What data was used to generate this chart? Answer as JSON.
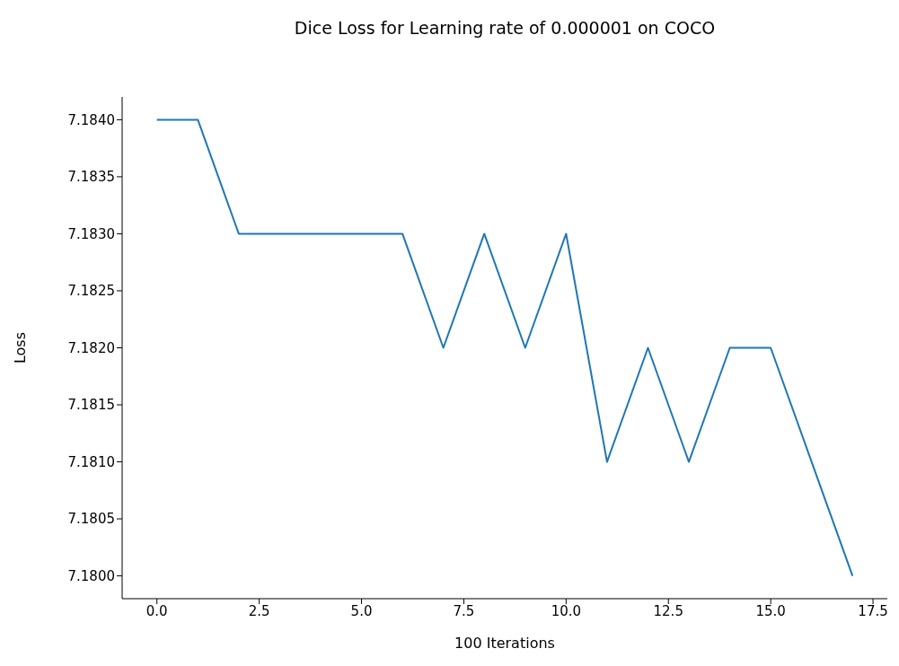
{
  "chart_data": {
    "type": "line",
    "title": "Dice Loss for Learning rate of 0.000001 on COCO",
    "xlabel": "100 Iterations",
    "ylabel": "Loss",
    "x": [
      0,
      1,
      2,
      3,
      4,
      5,
      6,
      7,
      8,
      9,
      10,
      11,
      12,
      13,
      14,
      15,
      16,
      17
    ],
    "series": [
      {
        "color": "#1f77b4",
        "values": [
          7.184,
          7.184,
          7.183,
          7.183,
          7.183,
          7.183,
          7.183,
          7.182,
          7.183,
          7.182,
          7.183,
          7.181,
          7.182,
          7.181,
          7.182,
          7.182,
          7.181,
          7.18
        ]
      }
    ],
    "xlim": [
      -0.85,
      17.85
    ],
    "xticks": [
      {
        "value": 0,
        "label": "0.0"
      },
      {
        "value": 2.5,
        "label": "2.5"
      },
      {
        "value": 5,
        "label": "5.0"
      },
      {
        "value": 7.5,
        "label": "7.5"
      },
      {
        "value": 10,
        "label": "10.0"
      },
      {
        "value": 12.5,
        "label": "12.5"
      },
      {
        "value": 15,
        "label": "15.0"
      },
      {
        "value": 17.5,
        "label": "17.5"
      }
    ],
    "ylim": [
      7.1798,
      7.1842
    ],
    "yticks": [
      {
        "value": 7.18,
        "label": "7.1800"
      },
      {
        "value": 7.1805,
        "label": "7.1805"
      },
      {
        "value": 7.181,
        "label": "7.1810"
      },
      {
        "value": 7.1815,
        "label": "7.1815"
      },
      {
        "value": 7.182,
        "label": "7.1820"
      },
      {
        "value": 7.1825,
        "label": "7.1825"
      },
      {
        "value": 7.183,
        "label": "7.1830"
      },
      {
        "value": 7.1835,
        "label": "7.1835"
      },
      {
        "value": 7.184,
        "label": "7.1840"
      }
    ],
    "grid": false,
    "legend": false,
    "marker": "none",
    "line_style": "solid"
  }
}
